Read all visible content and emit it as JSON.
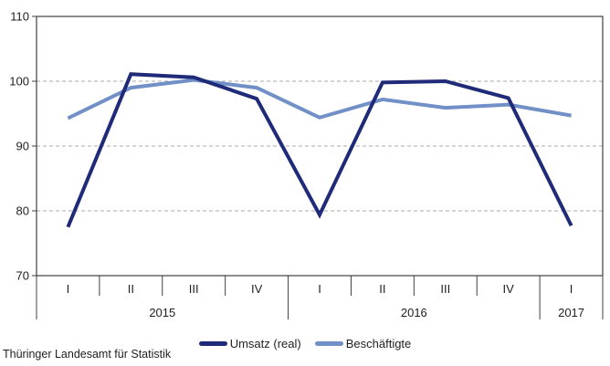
{
  "chart_data": {
    "type": "line",
    "title": "",
    "xlabel": "",
    "ylabel": "",
    "categories": [
      "I",
      "II",
      "III",
      "IV",
      "I",
      "II",
      "III",
      "IV",
      "I"
    ],
    "year_groups": [
      {
        "label": "2015",
        "span": 4
      },
      {
        "label": "2016",
        "span": 4
      },
      {
        "label": "2017",
        "span": 1
      }
    ],
    "series": [
      {
        "name": "Umsatz (real)",
        "color": "#1F2B78",
        "values": [
          77.5,
          101.1,
          100.6,
          97.3,
          79.4,
          99.8,
          100.0,
          97.4,
          77.7
        ]
      },
      {
        "name": "Beschäftigte",
        "color": "#7090C7",
        "values": [
          94.3,
          99.0,
          100.2,
          99.0,
          94.4,
          97.2,
          95.9,
          96.4,
          94.7
        ]
      }
    ],
    "ylim": [
      70,
      110
    ],
    "yticks": [
      70,
      80,
      90,
      100,
      110
    ],
    "grid": "horizontal dashed gridlines at 80, 90, 100",
    "legend_position": "bottom-center"
  },
  "colors": {
    "axis": "#404040",
    "grid": "#A8A8A8",
    "text": "#1F1F1F"
  },
  "footer": {
    "source_label": "Thüringer Landesamt für Statistik"
  }
}
